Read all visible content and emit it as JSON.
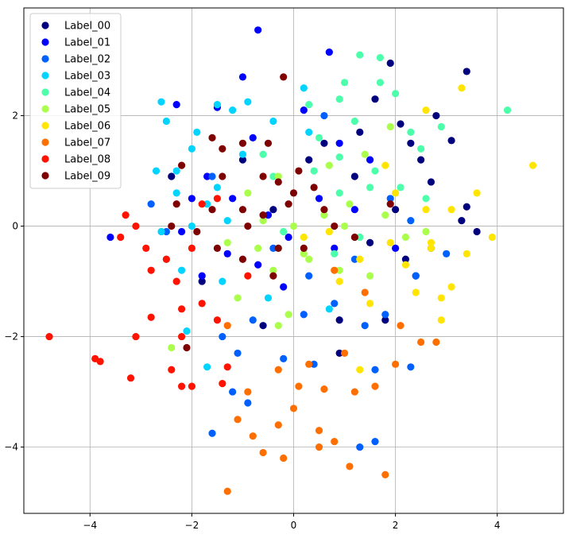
{
  "chart_data": {
    "type": "scatter",
    "title": "",
    "xlabel": "",
    "ylabel": "",
    "xlim": [
      -5.3,
      5.3
    ],
    "ylim": [
      -5.2,
      3.95
    ],
    "xticks": [
      -4,
      -2,
      0,
      2,
      4
    ],
    "yticks": [
      -4,
      -2,
      0,
      2
    ],
    "grid": true,
    "legend_position": "top-left",
    "series": [
      {
        "name": "Label_00",
        "color": "#00007f",
        "points": [
          [
            3.4,
            2.8
          ],
          [
            1.9,
            2.95
          ],
          [
            2.1,
            1.85
          ],
          [
            2.8,
            2.0
          ],
          [
            3.1,
            1.55
          ],
          [
            2.5,
            1.2
          ],
          [
            3.4,
            0.35
          ],
          [
            3.6,
            -0.1
          ],
          [
            2.2,
            -0.6
          ],
          [
            2.4,
            -0.9
          ],
          [
            1.8,
            -1.7
          ],
          [
            0.9,
            -1.7
          ],
          [
            1.3,
            1.7
          ],
          [
            0.6,
            1.5
          ],
          [
            -1.0,
            1.2
          ],
          [
            -2.4,
            0.9
          ],
          [
            -1.8,
            -1.0
          ],
          [
            -0.6,
            -1.8
          ],
          [
            0.9,
            -2.3
          ],
          [
            2.0,
            0.3
          ],
          [
            1.6,
            2.3
          ],
          [
            0.3,
            1.2
          ],
          [
            -0.4,
            0.3
          ],
          [
            2.7,
            0.8
          ],
          [
            3.3,
            0.1
          ],
          [
            1.2,
            0.9
          ],
          [
            2.3,
            1.5
          ],
          [
            1.5,
            -0.3
          ]
        ]
      },
      {
        "name": "Label_01",
        "color": "#0000ff",
        "points": [
          [
            -0.7,
            3.55
          ],
          [
            0.7,
            3.15
          ],
          [
            -1.0,
            2.7
          ],
          [
            -2.3,
            2.2
          ],
          [
            -1.5,
            2.15
          ],
          [
            0.2,
            2.1
          ],
          [
            -0.8,
            1.6
          ],
          [
            0.9,
            1.5
          ],
          [
            -1.7,
            0.9
          ],
          [
            -1.2,
            0.5
          ],
          [
            -0.5,
            0.2
          ],
          [
            -0.1,
            -0.2
          ],
          [
            -2.2,
            -0.1
          ],
          [
            -1.3,
            -0.5
          ],
          [
            -0.7,
            -0.7
          ],
          [
            0.5,
            0.5
          ],
          [
            1.2,
            0.3
          ],
          [
            2.0,
            -0.4
          ],
          [
            -1.8,
            -0.9
          ],
          [
            -0.2,
            -1.1
          ],
          [
            -3.6,
            -0.2
          ],
          [
            -2.0,
            0.5
          ],
          [
            1.5,
            1.2
          ],
          [
            0.8,
            -0.4
          ]
        ]
      },
      {
        "name": "Label_02",
        "color": "#0060ff",
        "points": [
          [
            -1.6,
            -3.75
          ],
          [
            -1.2,
            -3.0
          ],
          [
            -0.9,
            -3.2
          ],
          [
            1.6,
            -3.9
          ],
          [
            1.3,
            -4.0
          ],
          [
            2.3,
            -2.55
          ],
          [
            1.6,
            -2.6
          ],
          [
            0.4,
            -2.5
          ],
          [
            -0.2,
            -2.4
          ],
          [
            -1.1,
            -2.3
          ],
          [
            -1.4,
            -2.0
          ],
          [
            -0.8,
            -1.7
          ],
          [
            0.2,
            -1.6
          ],
          [
            0.8,
            -1.4
          ],
          [
            1.4,
            -1.8
          ],
          [
            1.8,
            -1.6
          ],
          [
            2.4,
            -0.9
          ],
          [
            2.7,
            -0.4
          ],
          [
            3.0,
            -0.5
          ],
          [
            -2.5,
            -0.1
          ],
          [
            -2.8,
            0.4
          ],
          [
            -1.6,
            0.9
          ],
          [
            0.6,
            2.0
          ],
          [
            1.2,
            -0.6
          ],
          [
            -0.4,
            -0.4
          ],
          [
            0.3,
            -0.9
          ],
          [
            1.9,
            0.5
          ],
          [
            2.3,
            0.1
          ]
        ]
      },
      {
        "name": "Label_03",
        "color": "#00d4ff",
        "points": [
          [
            -2.6,
            2.25
          ],
          [
            -1.5,
            2.2
          ],
          [
            -1.2,
            2.1
          ],
          [
            -0.9,
            2.25
          ],
          [
            0.2,
            2.5
          ],
          [
            -2.5,
            1.9
          ],
          [
            -1.9,
            1.7
          ],
          [
            -2.0,
            1.4
          ],
          [
            -1.0,
            1.3
          ],
          [
            -2.3,
            1.0
          ],
          [
            -2.7,
            1.0
          ],
          [
            -2.3,
            0.6
          ],
          [
            -1.7,
            0.4
          ],
          [
            -2.0,
            0.0
          ],
          [
            -2.6,
            -0.1
          ],
          [
            -2.5,
            -0.6
          ],
          [
            -2.2,
            -0.8
          ],
          [
            -1.4,
            -1.0
          ],
          [
            -0.5,
            -1.3
          ],
          [
            0.7,
            -1.5
          ],
          [
            -2.1,
            -1.9
          ],
          [
            -1.7,
            -2.55
          ],
          [
            -1.3,
            0.1
          ],
          [
            0.3,
            1.7
          ],
          [
            -0.4,
            1.9
          ],
          [
            -1.5,
            0.7
          ]
        ]
      },
      {
        "name": "Label_04",
        "color": "#4cffaa",
        "points": [
          [
            1.3,
            3.1
          ],
          [
            1.7,
            3.05
          ],
          [
            1.7,
            2.6
          ],
          [
            2.0,
            2.4
          ],
          [
            4.2,
            2.1
          ],
          [
            1.0,
            2.6
          ],
          [
            0.9,
            2.3
          ],
          [
            0.3,
            2.2
          ],
          [
            2.3,
            1.7
          ],
          [
            2.9,
            1.8
          ],
          [
            2.5,
            1.4
          ],
          [
            0.9,
            1.25
          ],
          [
            1.6,
            1.0
          ],
          [
            0.4,
            1.0
          ],
          [
            -0.4,
            0.9
          ],
          [
            2.1,
            0.7
          ],
          [
            1.5,
            0.7
          ],
          [
            -0.6,
            1.3
          ],
          [
            2.6,
            0.5
          ],
          [
            0.9,
            0.6
          ],
          [
            0.6,
            0.2
          ],
          [
            1.3,
            -0.2
          ],
          [
            0.8,
            -0.5
          ],
          [
            -0.2,
            -0.1
          ],
          [
            1.2,
            1.9
          ],
          [
            0.5,
            1.6
          ]
        ]
      },
      {
        "name": "Label_05",
        "color": "#aaff4c",
        "points": [
          [
            -2.4,
            -2.2
          ],
          [
            -0.3,
            -1.8
          ],
          [
            -0.1,
            -1.6
          ],
          [
            -1.1,
            -1.3
          ],
          [
            -0.4,
            -0.8
          ],
          [
            0.3,
            -0.6
          ],
          [
            0.9,
            -0.8
          ],
          [
            1.5,
            -0.9
          ],
          [
            2.2,
            -0.2
          ],
          [
            2.6,
            -0.1
          ],
          [
            1.8,
            0.2
          ],
          [
            1.1,
            0.4
          ],
          [
            0.6,
            0.2
          ],
          [
            0.0,
            0.0
          ],
          [
            -0.6,
            0.1
          ],
          [
            -1.3,
            -0.3
          ],
          [
            -0.9,
            0.6
          ],
          [
            -0.3,
            0.9
          ],
          [
            0.7,
            1.1
          ],
          [
            1.4,
            1.3
          ],
          [
            1.9,
            1.8
          ],
          [
            0.2,
            -0.5
          ],
          [
            -0.7,
            -0.4
          ],
          [
            1.0,
            0.0
          ]
        ]
      },
      {
        "name": "Label_06",
        "color": "#ffe500",
        "points": [
          [
            3.3,
            2.5
          ],
          [
            4.7,
            1.1
          ],
          [
            2.6,
            2.1
          ],
          [
            3.6,
            0.6
          ],
          [
            3.9,
            -0.2
          ],
          [
            3.1,
            0.3
          ],
          [
            3.4,
            -0.5
          ],
          [
            3.1,
            -1.1
          ],
          [
            2.9,
            -1.3
          ],
          [
            2.4,
            -1.2
          ],
          [
            2.2,
            -0.7
          ],
          [
            2.7,
            -0.4
          ],
          [
            1.9,
            -0.3
          ],
          [
            1.3,
            -0.6
          ],
          [
            1.5,
            -1.4
          ],
          [
            0.9,
            -1.0
          ],
          [
            1.3,
            -2.6
          ],
          [
            2.7,
            -0.3
          ],
          [
            2.6,
            0.3
          ],
          [
            2.9,
            -1.7
          ],
          [
            1.8,
            1.1
          ],
          [
            0.7,
            -0.1
          ],
          [
            0.2,
            -0.2
          ],
          [
            2.0,
            0.6
          ]
        ]
      },
      {
        "name": "Label_07",
        "color": "#ff6f00",
        "points": [
          [
            -1.3,
            -4.8
          ],
          [
            -0.8,
            -3.8
          ],
          [
            -0.6,
            -4.1
          ],
          [
            -0.2,
            -4.2
          ],
          [
            0.5,
            -4.0
          ],
          [
            0.8,
            -3.9
          ],
          [
            1.1,
            -4.35
          ],
          [
            1.8,
            -4.5
          ],
          [
            -0.3,
            -3.6
          ],
          [
            0.5,
            -3.7
          ],
          [
            -1.1,
            -3.5
          ],
          [
            -0.9,
            -3.0
          ],
          [
            0.1,
            -2.9
          ],
          [
            0.6,
            -2.95
          ],
          [
            1.2,
            -3.0
          ],
          [
            1.6,
            -2.9
          ],
          [
            2.0,
            -2.5
          ],
          [
            2.5,
            -2.1
          ],
          [
            2.8,
            -2.1
          ],
          [
            2.1,
            -1.8
          ],
          [
            1.4,
            -1.2
          ],
          [
            0.8,
            -0.8
          ],
          [
            0.3,
            -2.5
          ],
          [
            -0.3,
            -2.6
          ],
          [
            -1.3,
            -1.8
          ],
          [
            0.0,
            -3.3
          ],
          [
            1.0,
            -2.3
          ]
        ]
      },
      {
        "name": "Label_08",
        "color": "#ff1300",
        "points": [
          [
            -4.8,
            -2.0
          ],
          [
            -3.9,
            -2.4
          ],
          [
            -3.8,
            -2.45
          ],
          [
            -3.2,
            -2.75
          ],
          [
            -3.1,
            -2.0
          ],
          [
            -2.8,
            -1.65
          ],
          [
            -2.4,
            -2.6
          ],
          [
            -2.2,
            -2.9
          ],
          [
            -2.0,
            -2.9
          ],
          [
            -3.3,
            0.2
          ],
          [
            -3.1,
            0.0
          ],
          [
            -3.4,
            -0.2
          ],
          [
            -2.9,
            -0.4
          ],
          [
            -2.8,
            -0.8
          ],
          [
            -2.5,
            -0.6
          ],
          [
            -2.3,
            -1.0
          ],
          [
            -2.2,
            -1.5
          ],
          [
            -1.8,
            -1.4
          ],
          [
            -1.5,
            -1.7
          ],
          [
            -1.3,
            -2.55
          ],
          [
            -1.4,
            -2.85
          ],
          [
            -2.2,
            -2.0
          ],
          [
            -1.5,
            0.5
          ],
          [
            -1.8,
            0.4
          ],
          [
            -0.9,
            -0.9
          ],
          [
            -2.0,
            -0.4
          ]
        ]
      },
      {
        "name": "Label_09",
        "color": "#7f0000",
        "points": [
          [
            -0.2,
            2.7
          ],
          [
            -1.6,
            1.6
          ],
          [
            -2.2,
            1.1
          ],
          [
            -1.4,
            1.4
          ],
          [
            -1.0,
            1.5
          ],
          [
            -0.6,
            0.9
          ],
          [
            -0.3,
            0.8
          ],
          [
            0.1,
            1.0
          ],
          [
            0.4,
            0.7
          ],
          [
            0.6,
            0.3
          ],
          [
            -0.1,
            0.4
          ],
          [
            -0.6,
            0.2
          ],
          [
            -1.0,
            0.3
          ],
          [
            -1.6,
            0.3
          ],
          [
            -1.9,
            -0.1
          ],
          [
            -1.5,
            -0.4
          ],
          [
            -1.0,
            -0.6
          ],
          [
            -0.4,
            -0.9
          ],
          [
            0.2,
            -0.4
          ],
          [
            0.8,
            0.0
          ],
          [
            1.2,
            -0.2
          ],
          [
            1.9,
            0.4
          ],
          [
            -0.3,
            -0.4
          ],
          [
            -2.1,
            -2.2
          ],
          [
            -1.4,
            0.9
          ],
          [
            -0.9,
            0.0
          ],
          [
            0.0,
            0.6
          ],
          [
            -2.4,
            0.0
          ],
          [
            -2.3,
            0.4
          ],
          [
            -0.5,
            1.5
          ]
        ]
      }
    ]
  }
}
